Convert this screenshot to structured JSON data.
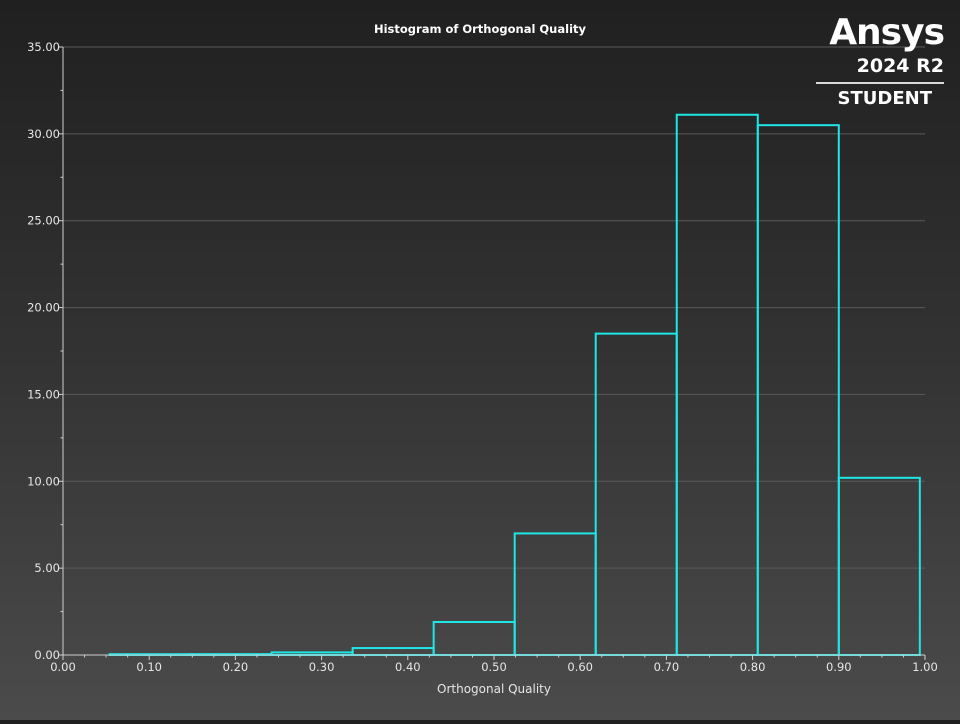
{
  "logo": {
    "name": "Ansys",
    "version": "2024 R2",
    "edition": "STUDENT"
  },
  "colors": {
    "bar_stroke": "#1ee6e6",
    "axis": "#cfcfcf",
    "grid": "#5a5a5a",
    "text": "#ffffff",
    "tick_label": "#e6e6e6"
  },
  "chart_data": {
    "type": "bar",
    "title": "Histogram of Orthogonal Quality",
    "xlabel": "Orthogonal Quality",
    "ylabel": "",
    "xlim": [
      0.0,
      1.0
    ],
    "ylim": [
      0.0,
      35.0
    ],
    "grid": true,
    "x_ticks": [
      "0.00",
      "0.10",
      "0.20",
      "0.30",
      "0.40",
      "0.50",
      "0.60",
      "0.70",
      "0.80",
      "0.90",
      "1.00"
    ],
    "y_ticks": [
      "0.00",
      "5.00",
      "10.00",
      "15.00",
      "20.00",
      "25.00",
      "30.00",
      "35.00"
    ],
    "bins": [
      {
        "x0": 0.054,
        "x1": 0.148,
        "value": 0.0
      },
      {
        "x0": 0.148,
        "x1": 0.242,
        "value": 0.05
      },
      {
        "x0": 0.242,
        "x1": 0.336,
        "value": 0.15
      },
      {
        "x0": 0.336,
        "x1": 0.43,
        "value": 0.4
      },
      {
        "x0": 0.43,
        "x1": 0.524,
        "value": 1.9
      },
      {
        "x0": 0.524,
        "x1": 0.618,
        "value": 7.0
      },
      {
        "x0": 0.618,
        "x1": 0.712,
        "value": 18.5
      },
      {
        "x0": 0.712,
        "x1": 0.806,
        "value": 31.1
      },
      {
        "x0": 0.806,
        "x1": 0.9,
        "value": 30.5
      },
      {
        "x0": 0.9,
        "x1": 0.994,
        "value": 10.2
      }
    ]
  }
}
